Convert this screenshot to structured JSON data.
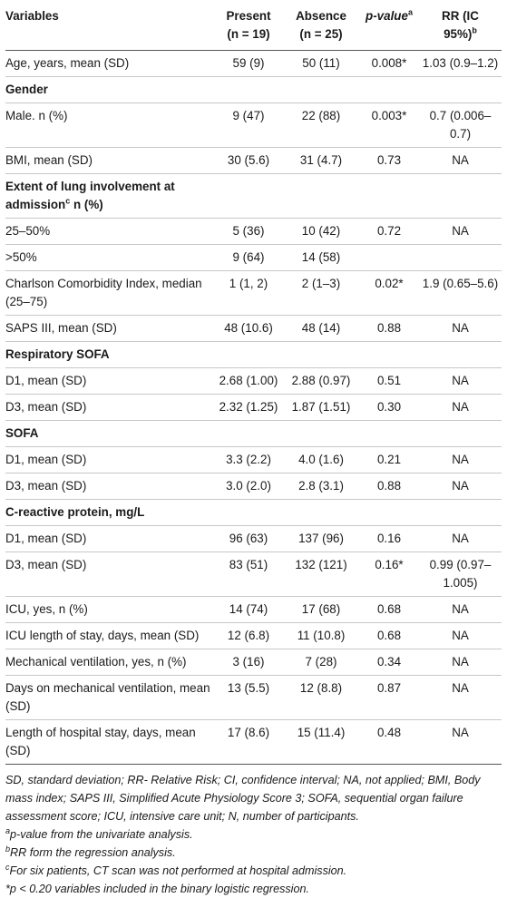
{
  "header": {
    "variables": "Variables",
    "present": "Present",
    "present_n": "(n = 19)",
    "absence": "Absence",
    "absence_n": "(n = 25)",
    "pvalue": "p-value",
    "pvalue_sup": "a",
    "rr_line1": "RR (IC",
    "rr_line2": "95%)",
    "rr_sup": "b"
  },
  "rows": [
    {
      "label": "Age, years, mean (SD)",
      "present": "59 (9)",
      "absence": "50 (11)",
      "p": "0.008*",
      "rr": "1.03 (0.9–1.2)"
    },
    {
      "label": "Gender",
      "section": true
    },
    {
      "label": "Male. n (%)",
      "present": "9 (47)",
      "absence": "22 (88)",
      "p": "0.003*",
      "rr": "0.7 (0.006–0.7)"
    },
    {
      "label": "BMI, mean (SD)",
      "present": "30 (5.6)",
      "absence": "31 (4.7)",
      "p": "0.73",
      "rr": "NA"
    },
    {
      "label": "Extent of lung involvement at admission",
      "label_sup": "c",
      "label_suffix": " n (%)",
      "section": true
    },
    {
      "label": "25–50%",
      "present": "5 (36)",
      "absence": "10 (42)",
      "p": "0.72",
      "rr": "NA"
    },
    {
      "label": ">50%",
      "present": "9 (64)",
      "absence": "14 (58)",
      "p": "",
      "rr": ""
    },
    {
      "label": "Charlson Comorbidity Index, median (25–75)",
      "present": "1 (1, 2)",
      "absence": "2 (1–3)",
      "p": "0.02*",
      "rr": "1.9 (0.65–5.6)"
    },
    {
      "label": "SAPS III, mean (SD)",
      "present": "48 (10.6)",
      "absence": "48 (14)",
      "p": "0.88",
      "rr": "NA"
    },
    {
      "label": "Respiratory SOFA",
      "section": true
    },
    {
      "label": "D1, mean (SD)",
      "present": "2.68 (1.00)",
      "absence": "2.88 (0.97)",
      "p": "0.51",
      "rr": "NA"
    },
    {
      "label": "D3, mean (SD)",
      "present": "2.32 (1.25)",
      "absence": "1.87 (1.51)",
      "p": "0.30",
      "rr": "NA"
    },
    {
      "label": "SOFA",
      "section": true
    },
    {
      "label": "D1, mean (SD)",
      "present": "3.3 (2.2)",
      "absence": "4.0 (1.6)",
      "p": "0.21",
      "rr": "NA"
    },
    {
      "label": "D3, mean (SD)",
      "present": "3.0 (2.0)",
      "absence": "2.8 (3.1)",
      "p": "0.88",
      "rr": "NA"
    },
    {
      "label": "C-reactive protein, mg/L",
      "section": true
    },
    {
      "label": "D1, mean (SD)",
      "present": "96 (63)",
      "absence": "137 (96)",
      "p": "0.16",
      "rr": "NA"
    },
    {
      "label": "D3, mean (SD)",
      "present": "83 (51)",
      "absence": "132 (121)",
      "p": "0.16*",
      "rr": "0.99 (0.97–1.005)"
    },
    {
      "label": "ICU, yes, n (%)",
      "present": "14 (74)",
      "absence": "17 (68)",
      "p": "0.68",
      "rr": "NA"
    },
    {
      "label": "ICU length of stay, days, mean (SD)",
      "present": "12 (6.8)",
      "absence": "11 (10.8)",
      "p": "0.68",
      "rr": "NA"
    },
    {
      "label": "Mechanical ventilation, yes, n (%)",
      "present": "3 (16)",
      "absence": "7 (28)",
      "p": "0.34",
      "rr": "NA"
    },
    {
      "label": "Days on mechanical ventilation, mean (SD)",
      "present": "13 (5.5)",
      "absence": "12 (8.8)",
      "p": "0.87",
      "rr": "NA"
    },
    {
      "label": "Length of hospital stay, days, mean (SD)",
      "present": "17 (8.6)",
      "absence": "15 (11.4)",
      "p": "0.48",
      "rr": "NA"
    }
  ],
  "footnotes": {
    "abbrev": "SD, standard deviation; RR- Relative Risk; CI, confidence interval; NA, not applied; BMI, Body mass index; SAPS III, Simplified Acute Physiology Score 3; SOFA, sequential organ failure assessment score; ICU, intensive care unit; N, number of participants.",
    "a_mark": "a",
    "a_text": "p-value from the univariate analysis.",
    "b_mark": "b",
    "b_text": "RR form the regression analysis.",
    "c_mark": "c",
    "c_text": "For six patients, CT scan was not performed at hospital admission.",
    "star_text": "*p < 0.20 variables included in the binary logistic regression."
  }
}
